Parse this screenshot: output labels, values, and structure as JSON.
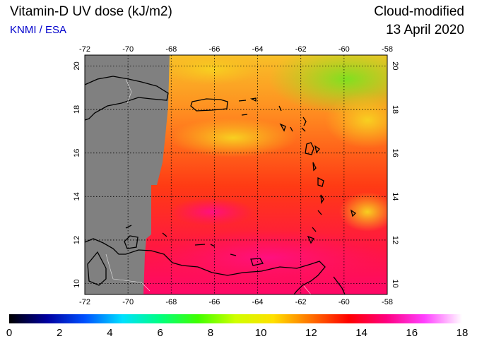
{
  "header": {
    "title": "Vitamin-D UV dose (kJ/m2)",
    "credit": "KNMI / ESA",
    "product": "Cloud-modified",
    "date": "13 April 2020"
  },
  "map": {
    "lon_range": [
      -72,
      -58
    ],
    "lat_range": [
      9.5,
      20.5
    ],
    "lon_ticks": [
      "-72",
      "-70",
      "-68",
      "-66",
      "-64",
      "-62",
      "-60",
      "-58"
    ],
    "lat_ticks": [
      "10",
      "12",
      "14",
      "16",
      "18",
      "20"
    ],
    "no_data_color": "#808080",
    "grid": "dotted"
  },
  "colorbar": {
    "min": 0,
    "max": 18,
    "labels": [
      "0",
      "2",
      "4",
      "6",
      "8",
      "10",
      "12",
      "14",
      "16",
      "18"
    ],
    "stops": [
      "#000000",
      "#0000a0",
      "#0050ff",
      "#00e0ff",
      "#00ff80",
      "#40ff00",
      "#d0ff00",
      "#ffe000",
      "#ff7000",
      "#ff0000",
      "#ff0080",
      "#ff40ff",
      "#ffffff"
    ]
  }
}
